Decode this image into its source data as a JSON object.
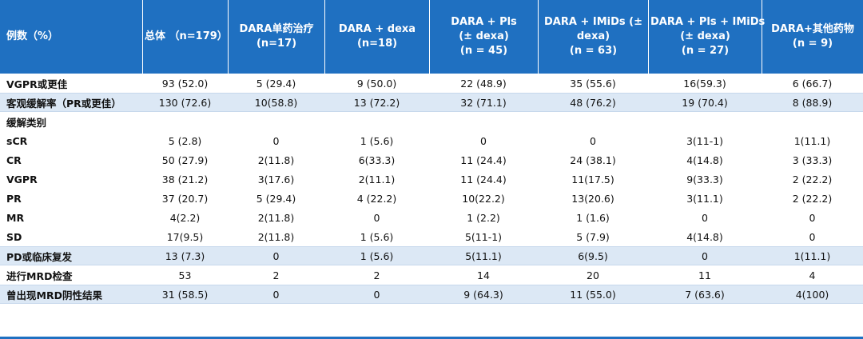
{
  "table": {
    "headers": [
      [
        "例数（%）"
      ],
      [
        "总体 （n=179）"
      ],
      [
        "DARA单药治疗",
        "(n=17)"
      ],
      [
        "DARA + dexa",
        "(n=18)"
      ],
      [
        "DARA + Pls",
        "(± dexa)",
        "(n = 45)"
      ],
      [
        "DARA + IMiDs (±",
        "dexa)",
        "(n = 63)"
      ],
      [
        "DARA + Pls + IMiDs",
        "(± dexa)",
        "(n = 27)"
      ],
      [
        "DARA+其他药物",
        "(n = 9)"
      ]
    ],
    "rows": [
      {
        "label": "VGPR或更佳",
        "shaded": false,
        "section": false,
        "cells": [
          "93 (52.0)",
          "5 (29.4)",
          "9 (50.0)",
          "22 (48.9)",
          "35 (55.6)",
          "16(59.3)",
          "6 (66.7)"
        ]
      },
      {
        "label": "客观缓解率（PR或更佳）",
        "shaded": true,
        "section": false,
        "cells": [
          "130 (72.6)",
          "10(58.8)",
          "13 (72.2)",
          "32 (71.1)",
          "48 (76.2)",
          "19 (70.4)",
          "8 (88.9)"
        ]
      },
      {
        "label": "缓解类别",
        "shaded": false,
        "section": true,
        "cells": [
          "",
          "",
          "",
          "",
          "",
          "",
          ""
        ]
      },
      {
        "label": "sCR",
        "shaded": false,
        "section": false,
        "cells": [
          "5 (2.8)",
          "0",
          "1 (5.6)",
          "0",
          "0",
          "3(11-1)",
          "1(11.1)"
        ]
      },
      {
        "label": "CR",
        "shaded": false,
        "section": false,
        "cells": [
          "50 (27.9)",
          "2(11.8)",
          "6(33.3)",
          "11 (24.4)",
          "24 (38.1)",
          "4(14.8)",
          "3 (33.3)"
        ]
      },
      {
        "label": "VGPR",
        "shaded": false,
        "section": false,
        "cells": [
          "38 (21.2)",
          "3(17.6)",
          "2(11.1)",
          "11 (24.4)",
          "11(17.5)",
          "9(33.3)",
          "2 (22.2)"
        ]
      },
      {
        "label": "PR",
        "shaded": false,
        "section": false,
        "cells": [
          "37 (20.7)",
          "5 (29.4)",
          "4 (22.2)",
          "10(22.2)",
          "13(20.6)",
          "3(11.1)",
          "2 (22.2)"
        ]
      },
      {
        "label": "MR",
        "shaded": false,
        "section": false,
        "cells": [
          "4(2.2)",
          "2(11.8)",
          "0",
          "1 (2.2)",
          "1 (1.6)",
          "0",
          "0"
        ]
      },
      {
        "label": "SD",
        "shaded": false,
        "section": false,
        "cells": [
          "17(9.5)",
          "2(11.8)",
          "1 (5.6)",
          "5(11-1)",
          "5 (7.9)",
          "4(14.8)",
          "0"
        ]
      },
      {
        "label": "PD或临床复发",
        "shaded": true,
        "section": false,
        "cells": [
          "13 (7.3)",
          "0",
          "1 (5.6)",
          "5(11.1)",
          "6(9.5)",
          "0",
          "1(11.1)"
        ]
      },
      {
        "label": "进行MRD检查",
        "shaded": false,
        "section": false,
        "cells": [
          "53",
          "2",
          "2",
          "14",
          "20",
          "11",
          "4"
        ]
      },
      {
        "label": "曾出现MRD阴性结果",
        "shaded": true,
        "section": false,
        "cells": [
          "31 (58.5)",
          "0",
          "0",
          "9 (64.3)",
          "11 (55.0)",
          "7 (63.6)",
          "4(100)"
        ]
      }
    ]
  },
  "colors": {
    "header_bg": "#1f70c1",
    "shaded_bg": "#dce8f5",
    "rule": "#1f70c1"
  }
}
